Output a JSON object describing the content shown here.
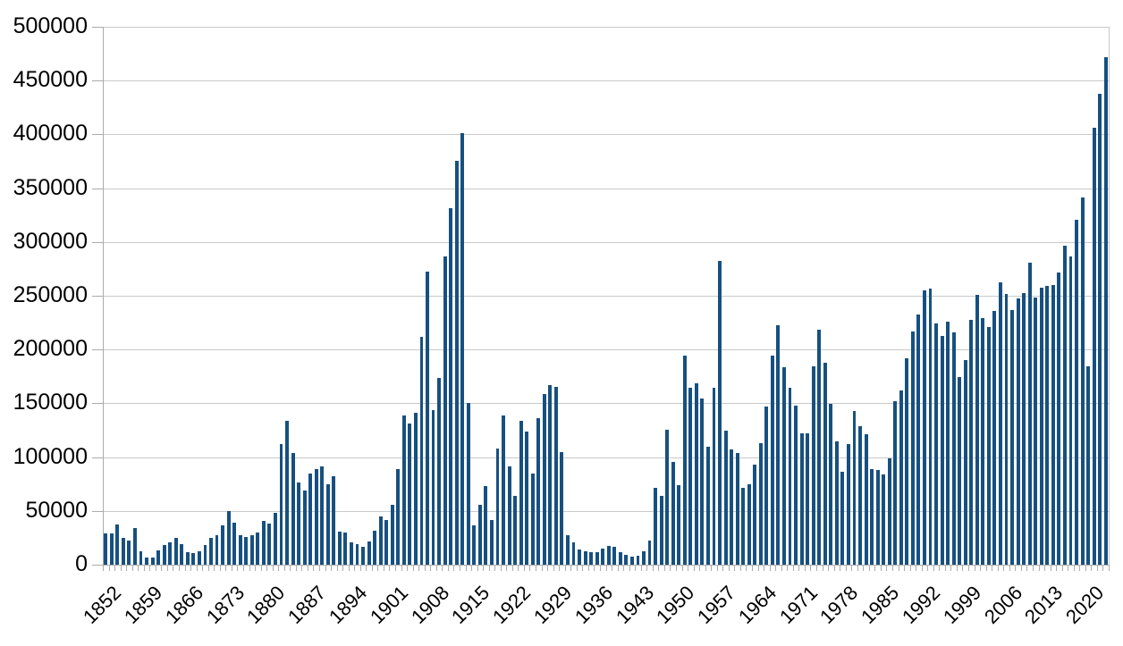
{
  "chart_data": {
    "type": "bar",
    "title": "",
    "x_range": [
      1852,
      2023
    ],
    "values": [
      29307,
      29464,
      37263,
      25296,
      22439,
      33854,
      12339,
      6300,
      6276,
      13589,
      18294,
      21000,
      24779,
      18958,
      11427,
      10666,
      12765,
      18630,
      24706,
      27773,
      36578,
      50050,
      39373,
      27382,
      25633,
      27082,
      29807,
      40492,
      38505,
      47991,
      112458,
      133624,
      103824,
      76169,
      69152,
      84526,
      88766,
      91600,
      75067,
      82165,
      30996,
      29633,
      20829,
      18790,
      16835,
      21716,
      31900,
      44543,
      41681,
      55747,
      89102,
      138660,
      131252,
      141465,
      211653,
      272409,
      143326,
      173694,
      286839,
      331288,
      375756,
      400870,
      150484,
      36665,
      55914,
      72910,
      41845,
      107698,
      138824,
      91728,
      64224,
      133729,
      124164,
      84907,
      135982,
      158886,
      166783,
      164993,
      104806,
      27530,
      20591,
      14382,
      12476,
      11277,
      11643,
      15101,
      17244,
      16994,
      11324,
      9329,
      7576,
      8504,
      12801,
      22722,
      71719,
      64127,
      125414,
      95217,
      73912,
      194391,
      164498,
      168868,
      154227,
      109946,
      164857,
      282164,
      124851,
      106928,
      104111,
      71698,
      74856,
      93151,
      112606,
      146758,
      194743,
      222876,
      183974,
      164531,
      147713,
      121900,
      122006,
      184200,
      218465,
      187881,
      149429,
      114914,
      86313,
      112093,
      143140,
      128642,
      121179,
      89188,
      88239,
      84302,
      99219,
      152098,
      161929,
      191547,
      216452,
      232744,
      254790,
      256641,
      224385,
      212866,
      226071,
      216035,
      174195,
      189951,
      227455,
      250638,
      229048,
      221349,
      235824,
      262243,
      251649,
      236754,
      247247,
      252179,
      280691,
      248748,
      257887,
      258953,
      260404,
      271845,
      296346,
      286479,
      321035,
      341180,
      184624,
      405999,
      437539,
      471771
    ],
    "x_axis": {
      "tick_labels": [
        "1852",
        "1859",
        "1866",
        "1873",
        "1880",
        "1887",
        "1894",
        "1901",
        "1908",
        "1915",
        "1922",
        "1929",
        "1936",
        "1943",
        "1950",
        "1957",
        "1964",
        "1971",
        "1978",
        "1985",
        "1992",
        "1999",
        "2006",
        "2013",
        "2020"
      ],
      "tick_interval_years": 7,
      "minor_tick_per_year": true
    },
    "y_axis": {
      "min": 0,
      "max": 500000,
      "step": 50000,
      "tick_labels": [
        "500000",
        "450000",
        "400000",
        "350000",
        "300000",
        "250000",
        "200000",
        "150000",
        "100000",
        "50000",
        "0"
      ]
    },
    "grid": true,
    "legend": false,
    "colors": {
      "bar": "#175080",
      "gridline": "#c9c9c9",
      "axis": "#ababab",
      "text": "#000000",
      "background": "#ffffff"
    }
  }
}
